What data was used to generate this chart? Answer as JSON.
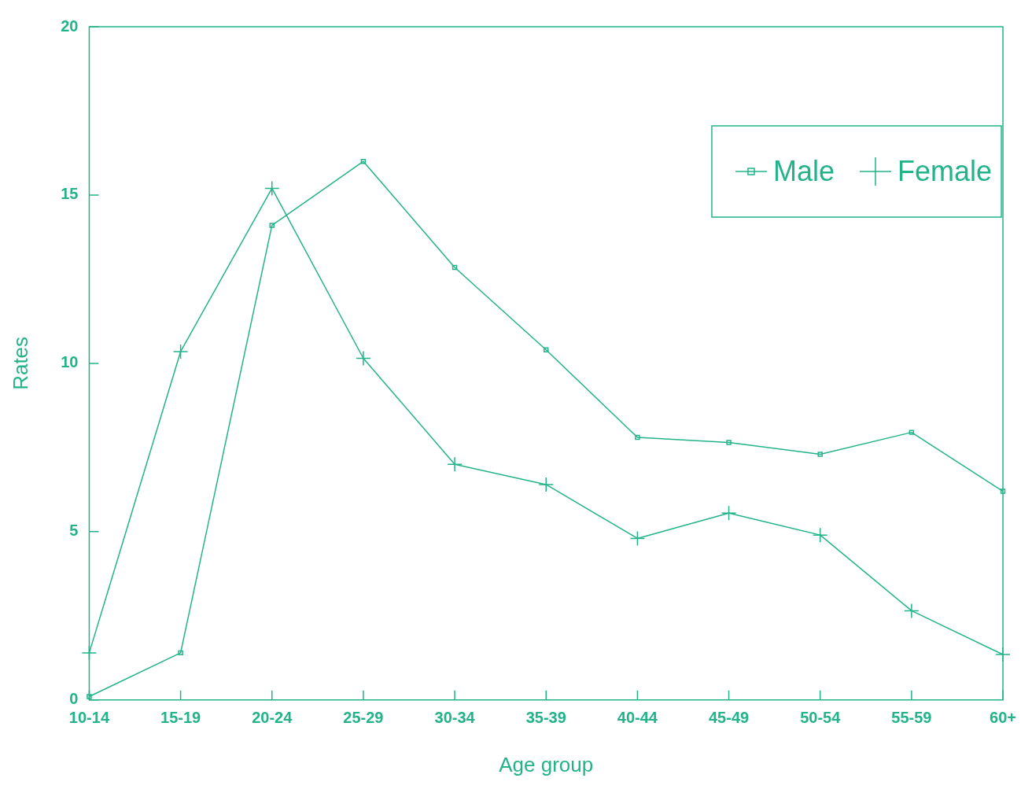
{
  "chart_data": {
    "type": "line",
    "xlabel": "Age group",
    "ylabel": "Rates",
    "categories": [
      "10-14",
      "15-19",
      "20-24",
      "25-29",
      "30-34",
      "35-39",
      "40-44",
      "45-49",
      "50-54",
      "55-59",
      "60+"
    ],
    "series": [
      {
        "name": "Male",
        "color": "#22b38a",
        "marker": "square",
        "values": [
          0.1,
          1.4,
          14.1,
          16.0,
          12.85,
          10.4,
          7.8,
          7.65,
          7.3,
          7.95,
          6.2
        ]
      },
      {
        "name": "Female",
        "color": "#22b38a",
        "marker": "cross",
        "values": [
          1.4,
          10.35,
          15.2,
          10.15,
          7.0,
          6.4,
          4.8,
          5.55,
          4.9,
          2.65,
          1.35
        ]
      }
    ],
    "ylim": [
      0,
      20
    ],
    "yticks": [
      0,
      5,
      10,
      15,
      20
    ],
    "grid": false,
    "legend": "top right",
    "line_style": "solid"
  }
}
